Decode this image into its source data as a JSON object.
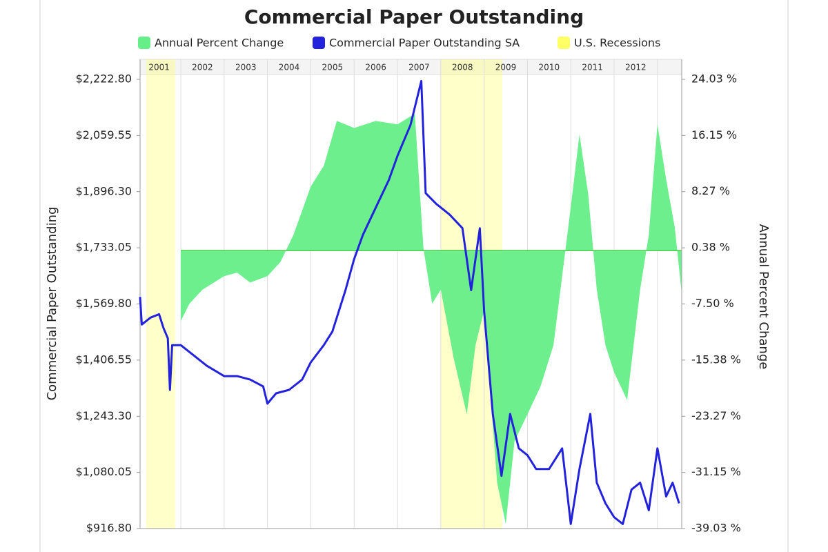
{
  "chart_data": {
    "type": "dual-axis-line-area",
    "title": "Commercial Paper Outstanding",
    "y_label": "Commercial Paper Outstanding",
    "y2_label": "Annual Percent Change",
    "xlim": [
      2001.06,
      2013.56
    ],
    "xticks": [
      2002,
      2003,
      2004,
      2005,
      2006,
      2007,
      2008,
      2009,
      2010,
      2011,
      2012,
      2013
    ],
    "year_labels": [
      {
        "value": 2001.5,
        "label": "2001"
      },
      {
        "value": 2002.5,
        "label": "2002"
      },
      {
        "value": 2003.5,
        "label": "2003"
      },
      {
        "value": 2004.5,
        "label": "2004"
      },
      {
        "value": 2005.5,
        "label": "2005"
      },
      {
        "value": 2006.5,
        "label": "2006"
      },
      {
        "value": 2007.5,
        "label": "2007"
      },
      {
        "value": 2008.5,
        "label": "2008"
      },
      {
        "value": 2009.5,
        "label": "2009"
      },
      {
        "value": 2010.5,
        "label": "2010"
      },
      {
        "value": 2011.5,
        "label": "2011"
      },
      {
        "value": 2012.5,
        "label": "2012"
      }
    ],
    "ylim": [
      916.8,
      2222.8
    ],
    "yticks": [
      {
        "value": 916.8,
        "label": "$916.80"
      },
      {
        "value": 1080.05,
        "label": "$1,080.05"
      },
      {
        "value": 1243.3,
        "label": "$1,243.30"
      },
      {
        "value": 1406.55,
        "label": "$1,406.55"
      },
      {
        "value": 1569.8,
        "label": "$1,569.80"
      },
      {
        "value": 1733.05,
        "label": "$1,733.05"
      },
      {
        "value": 1896.3,
        "label": "$1,896.30"
      },
      {
        "value": 2059.55,
        "label": "$2,059.55"
      },
      {
        "value": 2222.8,
        "label": "$2,222.80"
      }
    ],
    "y2lim": [
      -39.03,
      24.03
    ],
    "y2ticks": [
      {
        "value": -39.03,
        "label": "-39.03 %"
      },
      {
        "value": -31.15,
        "label": "-31.15 %"
      },
      {
        "value": -23.27,
        "label": "-23.27 %"
      },
      {
        "value": -15.38,
        "label": "-15.38 %"
      },
      {
        "value": -7.5,
        "label": "-7.50 %"
      },
      {
        "value": 0.38,
        "label": "0.38 %"
      },
      {
        "value": 8.27,
        "label": "8.27 %"
      },
      {
        "value": 16.15,
        "label": "16.15 %"
      },
      {
        "value": 24.03,
        "label": "24.03 %"
      }
    ],
    "recessions": {
      "name": "U.S. Recessions",
      "color": "#ffff66",
      "ranges": [
        [
          2001.2,
          2001.87
        ],
        [
          2008.0,
          2009.42
        ]
      ]
    },
    "series": [
      {
        "name": "Annual Percent Change",
        "type": "area",
        "axis": "y2",
        "color": "#66ee88",
        "x": [
          2002.0,
          2002.2,
          2002.5,
          2003.0,
          2003.3,
          2003.6,
          2004.0,
          2004.3,
          2004.6,
          2005.0,
          2005.3,
          2005.6,
          2006.0,
          2006.5,
          2007.0,
          2007.4,
          2007.6,
          2007.8,
          2008.0,
          2008.3,
          2008.6,
          2008.8,
          2009.0,
          2009.3,
          2009.5,
          2009.7,
          2010.0,
          2010.3,
          2010.6,
          2010.8,
          2011.0,
          2011.2,
          2011.4,
          2011.6,
          2011.8,
          2012.0,
          2012.3,
          2012.6,
          2012.8,
          2013.0,
          2013.2,
          2013.4,
          2013.55
        ],
        "values": [
          -9.9,
          -7.45,
          -5.5,
          -3.6,
          -3.1,
          -4.5,
          -3.6,
          -1.6,
          2.2,
          9.0,
          11.9,
          18.2,
          17.2,
          18.2,
          17.7,
          19.2,
          0.3,
          -7.45,
          -5.5,
          -15.2,
          -23.0,
          -13.3,
          -8.4,
          -32.6,
          -38.4,
          -26.8,
          -23.0,
          -19.1,
          -13.3,
          -3.6,
          6.1,
          16.3,
          8.0,
          -5.5,
          -13.3,
          -17.1,
          -21.0,
          -5.5,
          2.2,
          17.7,
          10.0,
          3.2,
          -5.5
        ]
      },
      {
        "name": "Commercial Paper Outstanding SA",
        "type": "line",
        "color": "#2222dd",
        "x": [
          2001.06,
          2001.1,
          2001.3,
          2001.5,
          2001.6,
          2001.7,
          2001.75,
          2001.8,
          2002.0,
          2002.3,
          2002.6,
          2003.0,
          2003.3,
          2003.6,
          2003.9,
          2004.0,
          2004.2,
          2004.5,
          2004.8,
          2005.0,
          2005.3,
          2005.5,
          2005.8,
          2006.0,
          2006.2,
          2006.5,
          2006.8,
          2007.0,
          2007.3,
          2007.55,
          2007.65,
          2007.9,
          2008.2,
          2008.5,
          2008.7,
          2008.9,
          2009.0,
          2009.2,
          2009.4,
          2009.6,
          2009.8,
          2010.0,
          2010.2,
          2010.5,
          2010.8,
          2011.0,
          2011.2,
          2011.45,
          2011.6,
          2011.8,
          2012.0,
          2012.2,
          2012.4,
          2012.6,
          2012.8,
          2013.0,
          2013.2,
          2013.35,
          2013.5
        ],
        "values": [
          1590,
          1510,
          1530,
          1540,
          1500,
          1470,
          1320,
          1450,
          1450,
          1420,
          1390,
          1360,
          1360,
          1350,
          1330,
          1280,
          1310,
          1320,
          1350,
          1400,
          1450,
          1490,
          1610,
          1700,
          1770,
          1850,
          1930,
          2000,
          2090,
          2218,
          1892,
          1860,
          1830,
          1790,
          1610,
          1790,
          1550,
          1250,
          1070,
          1250,
          1150,
          1130,
          1090,
          1090,
          1150,
          930,
          1090,
          1250,
          1050,
          990,
          950,
          930,
          1030,
          1050,
          970,
          1150,
          1010,
          1050,
          990
        ]
      }
    ]
  }
}
